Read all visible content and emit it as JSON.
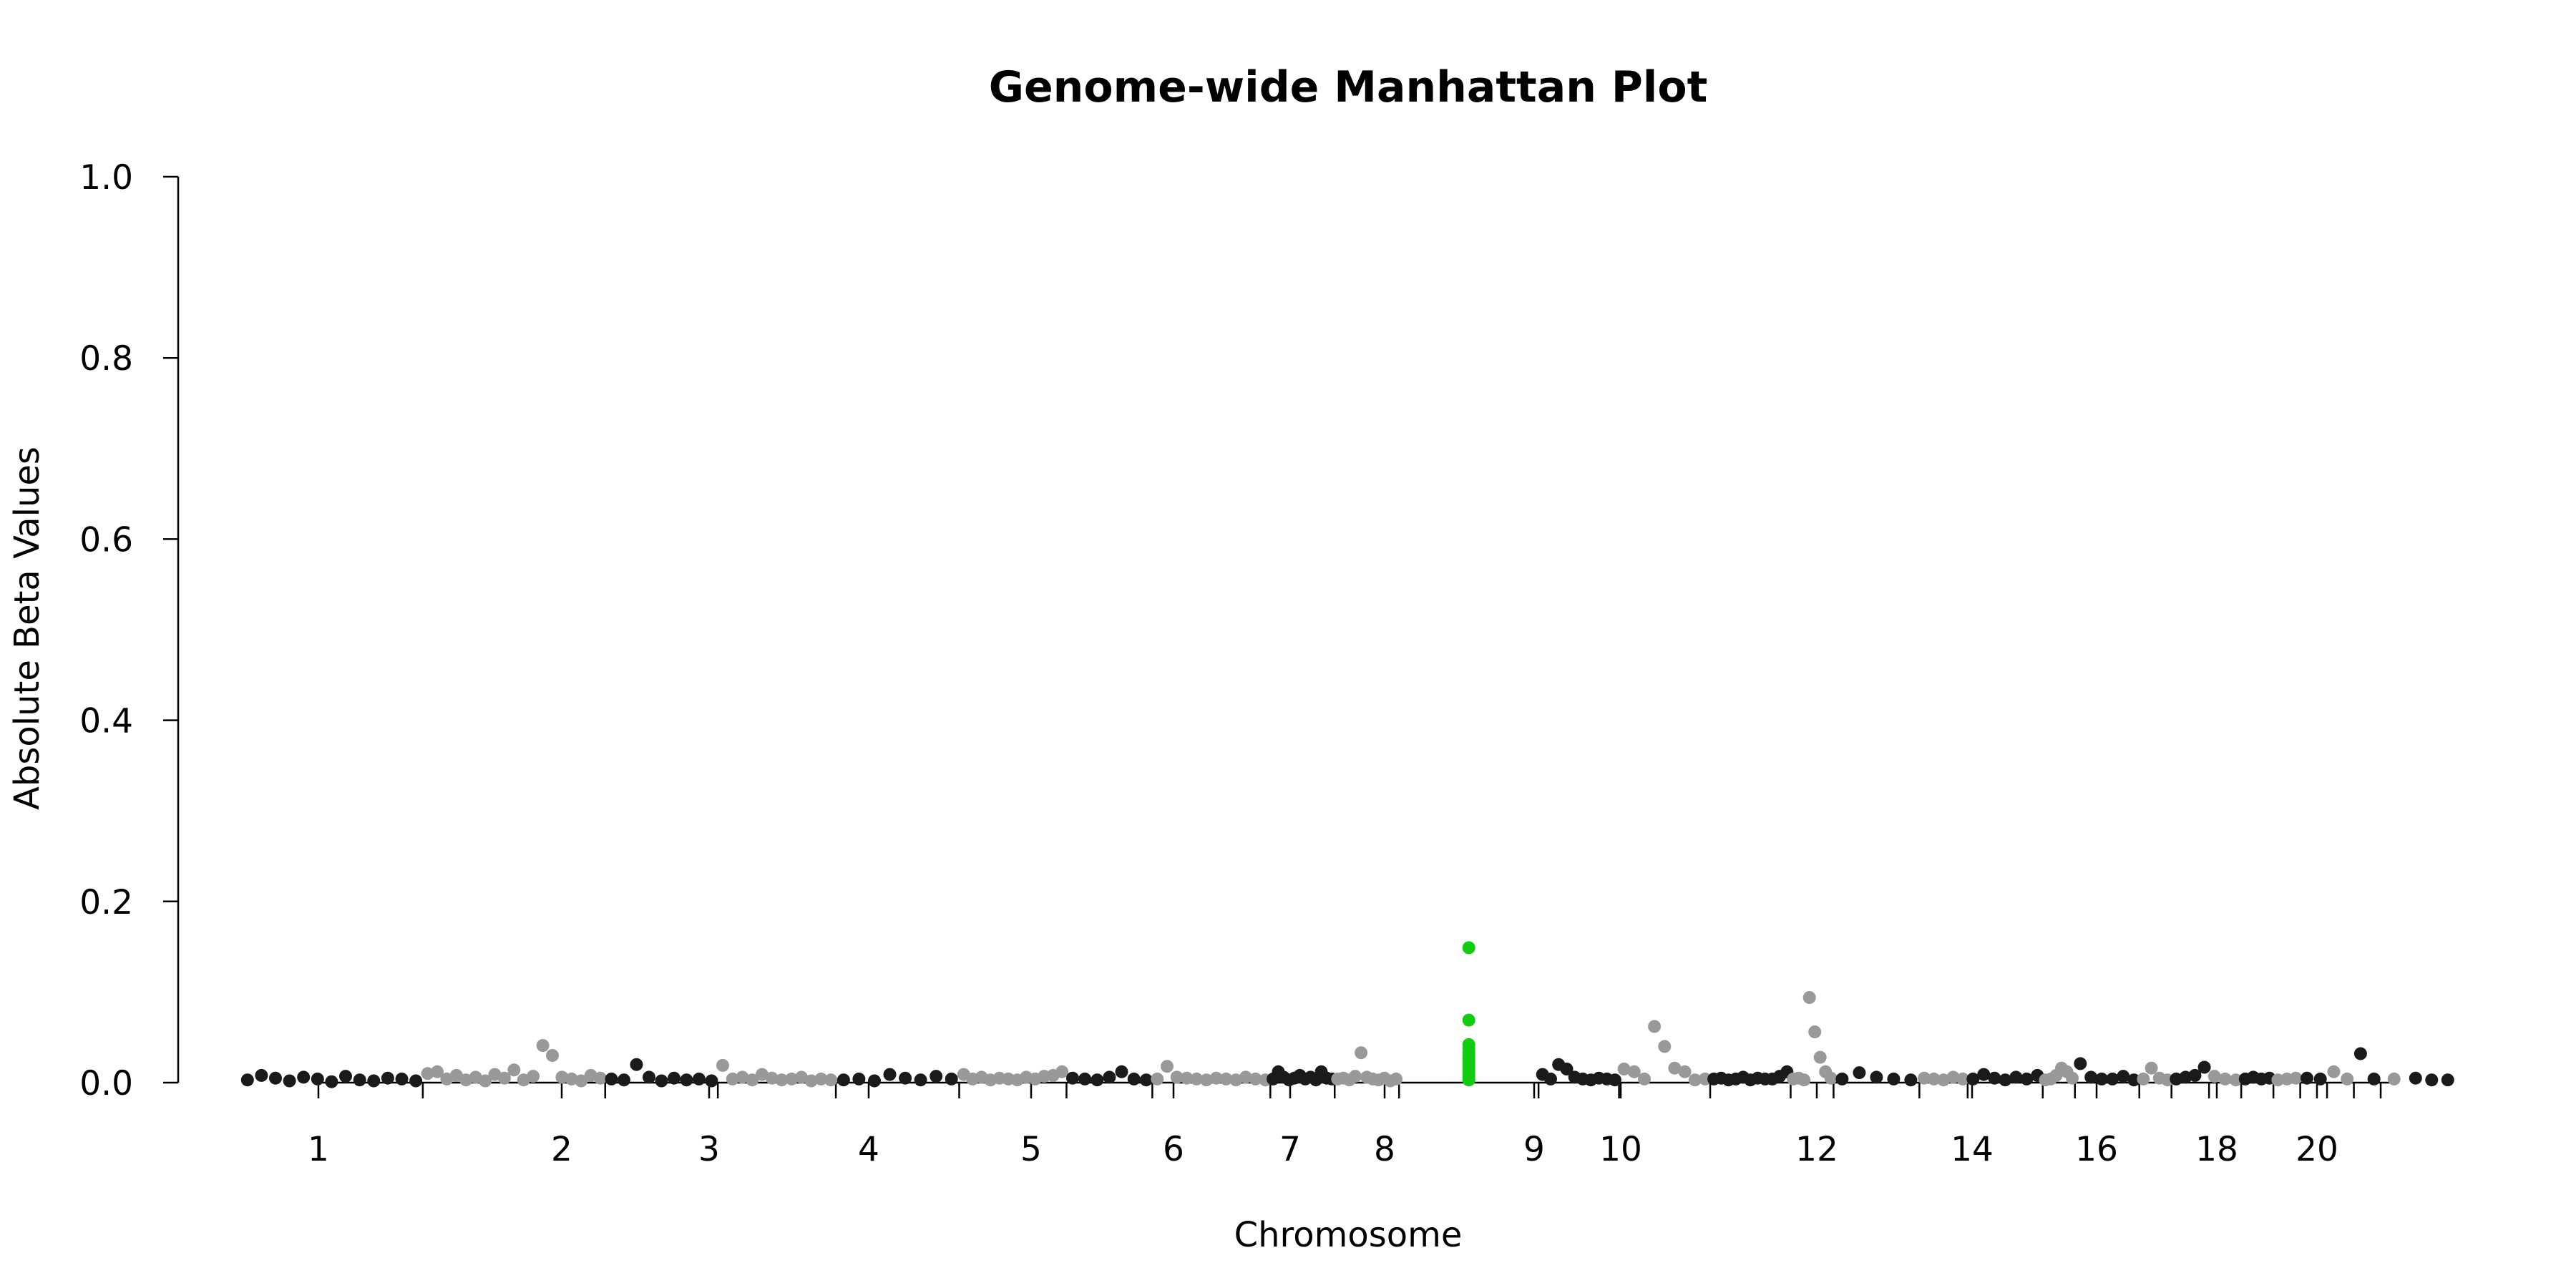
{
  "chart_data": {
    "type": "scatter",
    "title": "Genome-wide Manhattan Plot",
    "xlabel": "Chromosome",
    "ylabel": "Absolute Beta Values",
    "ylim": [
      0,
      1.0
    ],
    "y_ticks": [
      "0.0",
      "0.2",
      "0.4",
      "0.6",
      "0.8",
      "1.0"
    ],
    "y_tick_values": [
      0,
      0.2,
      0.4,
      0.6,
      0.8,
      1.0
    ],
    "x_tick_labels": [
      "1",
      "2",
      "3",
      "4",
      "5",
      "6",
      "7",
      "8",
      "9",
      "10",
      "12",
      "14",
      "16",
      "18",
      "20"
    ],
    "grid": false,
    "colors": {
      "dark": "#1a1a1a",
      "light": "#999999",
      "highlight": "#11cc11"
    },
    "chromosomes": [
      {
        "chr": "1",
        "color": "dark",
        "points": [
          0.003,
          0.008,
          0.005,
          0.002,
          0.006,
          0.004,
          0.001,
          0.007,
          0.003,
          0.002,
          0.005,
          0.004,
          0.002
        ]
      },
      {
        "chr": "2",
        "color": "light",
        "points": [
          0.01,
          0.012,
          0.004,
          0.008,
          0.003,
          0.006,
          0.002,
          0.009,
          0.005,
          0.014,
          0.003,
          0.007,
          0.041,
          0.03,
          0.006,
          0.004,
          0.002,
          0.008,
          0.005
        ]
      },
      {
        "chr": "3",
        "color": "dark",
        "points": [
          0.004,
          0.003,
          0.02,
          0.006,
          0.002,
          0.005,
          0.003,
          0.004,
          0.002
        ]
      },
      {
        "chr": "4",
        "color": "light",
        "points": [
          0.019,
          0.004,
          0.006,
          0.003,
          0.009,
          0.005,
          0.003,
          0.004,
          0.006,
          0.002,
          0.004,
          0.003
        ]
      },
      {
        "chr": "5",
        "color": "dark",
        "points": [
          0.003,
          0.004,
          0.002,
          0.009,
          0.005,
          0.003,
          0.007,
          0.004
        ]
      },
      {
        "chr": "6",
        "color": "light",
        "points": [
          0.009,
          0.004,
          0.006,
          0.003,
          0.005,
          0.004,
          0.003,
          0.006,
          0.004,
          0.007,
          0.008,
          0.012
        ]
      },
      {
        "chr": "7",
        "color": "dark",
        "points": [
          0.005,
          0.004,
          0.003,
          0.006,
          0.012,
          0.004,
          0.003
        ]
      },
      {
        "chr": "8",
        "color": "light",
        "points": [
          0.004,
          0.018,
          0.006,
          0.005,
          0.004,
          0.003,
          0.005,
          0.004,
          0.003,
          0.006,
          0.004,
          0.003
        ]
      },
      {
        "chr": "9",
        "color": "dark",
        "points": [
          0.004,
          0.012,
          0.006,
          0.003,
          0.005,
          0.008,
          0.004,
          0.006,
          0.003,
          0.012,
          0.005,
          0.004
        ]
      },
      {
        "chr": "10",
        "color": "light",
        "points": [
          0.004,
          0.005,
          0.003,
          0.007,
          0.033,
          0.006,
          0.004,
          0.003,
          0.005,
          0.002,
          0.004
        ]
      },
      {
        "chr": "11",
        "color": "highlight",
        "points": [
          0.149,
          0.069,
          0.042,
          0.038,
          0.034,
          0.03,
          0.027,
          0.024,
          0.021,
          0.018,
          0.015,
          0.012,
          0.009,
          0.006,
          0.003
        ]
      },
      {
        "chr": "12",
        "color": "dark",
        "points": [
          0.009,
          0.004,
          0.02,
          0.015,
          0.006,
          0.004,
          0.003,
          0.005,
          0.004,
          0.003
        ]
      },
      {
        "chr": "13",
        "color": "light",
        "points": [
          0.015,
          0.012,
          0.004,
          0.062,
          0.04,
          0.016,
          0.012,
          0.003,
          0.004
        ]
      },
      {
        "chr": "14",
        "color": "dark",
        "points": [
          0.004,
          0.005,
          0.003,
          0.004,
          0.006,
          0.003,
          0.005,
          0.004,
          0.004,
          0.007,
          0.012
        ]
      },
      {
        "chr": "15",
        "color": "light",
        "points": [
          0.004,
          0.005,
          0.003,
          0.094,
          0.056,
          0.028,
          0.012,
          0.005
        ]
      },
      {
        "chr": "16",
        "color": "dark",
        "points": [
          0.004,
          0.011,
          0.006,
          0.004,
          0.003
        ]
      },
      {
        "chr": "17",
        "color": "light",
        "points": [
          0.005,
          0.004,
          0.003,
          0.006,
          0.004
        ]
      },
      {
        "chr": "18",
        "color": "dark",
        "points": [
          0.004,
          0.009,
          0.005,
          0.003,
          0.006,
          0.004,
          0.008
        ]
      },
      {
        "chr": "19",
        "color": "light",
        "points": [
          0.003,
          0.004,
          0.008,
          0.016,
          0.012,
          0.005
        ]
      },
      {
        "chr": "20",
        "color": "dark",
        "points": [
          0.021,
          0.006,
          0.004,
          0.004,
          0.007,
          0.003
        ]
      },
      {
        "chr": "21",
        "color": "light",
        "points": [
          0.004,
          0.016,
          0.005,
          0.003
        ]
      },
      {
        "chr": "22",
        "color": "dark",
        "points": [
          0.004,
          0.006,
          0.008,
          0.017
        ]
      },
      {
        "chr": "23",
        "color": "light",
        "points": [
          0.007,
          0.004,
          0.003
        ]
      },
      {
        "chr": "24",
        "color": "dark",
        "points": [
          0.004,
          0.006,
          0.004,
          0.005
        ]
      },
      {
        "chr": "25",
        "color": "light",
        "points": [
          0.003,
          0.004,
          0.005
        ]
      },
      {
        "chr": "26",
        "color": "dark",
        "points": [
          0.005,
          0.004
        ]
      },
      {
        "chr": "27",
        "color": "light",
        "points": [
          0.012,
          0.004
        ]
      },
      {
        "chr": "28",
        "color": "dark",
        "points": [
          0.032,
          0.004
        ]
      },
      {
        "chr": "29",
        "color": "light",
        "points": [
          0.004
        ]
      },
      {
        "chr": "30",
        "color": "dark",
        "points": [
          0.005,
          0.003,
          0.003
        ]
      }
    ]
  }
}
